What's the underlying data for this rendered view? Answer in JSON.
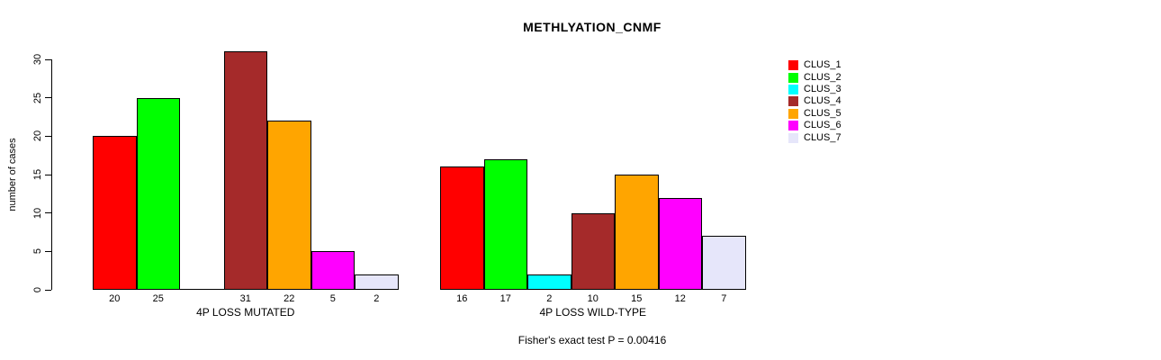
{
  "chart_data": {
    "type": "bar",
    "title": "METHLYATION_CNMF",
    "ylabel": "number of cases",
    "yticks": [
      0,
      5,
      10,
      15,
      20,
      25,
      30
    ],
    "ylim": [
      0,
      31
    ],
    "grid": false,
    "legend_position": "top-right",
    "clusters": [
      {
        "name": "CLUS_1",
        "color": "#FF0000"
      },
      {
        "name": "CLUS_2",
        "color": "#00FF00"
      },
      {
        "name": "CLUS_3",
        "color": "#00FFFF"
      },
      {
        "name": "CLUS_4",
        "color": "#A52A2A"
      },
      {
        "name": "CLUS_5",
        "color": "#FFA500"
      },
      {
        "name": "CLUS_6",
        "color": "#FF00FF"
      },
      {
        "name": "CLUS_7",
        "color": "#E6E6FA"
      }
    ],
    "groups": [
      {
        "label": "4P LOSS MUTATED",
        "values": [
          20,
          25,
          0,
          31,
          22,
          5,
          2
        ]
      },
      {
        "label": "4P LOSS WILD-TYPE",
        "values": [
          16,
          17,
          2,
          10,
          15,
          12,
          7
        ]
      }
    ],
    "footnote": "Fisher's exact test P = 0.00416"
  }
}
